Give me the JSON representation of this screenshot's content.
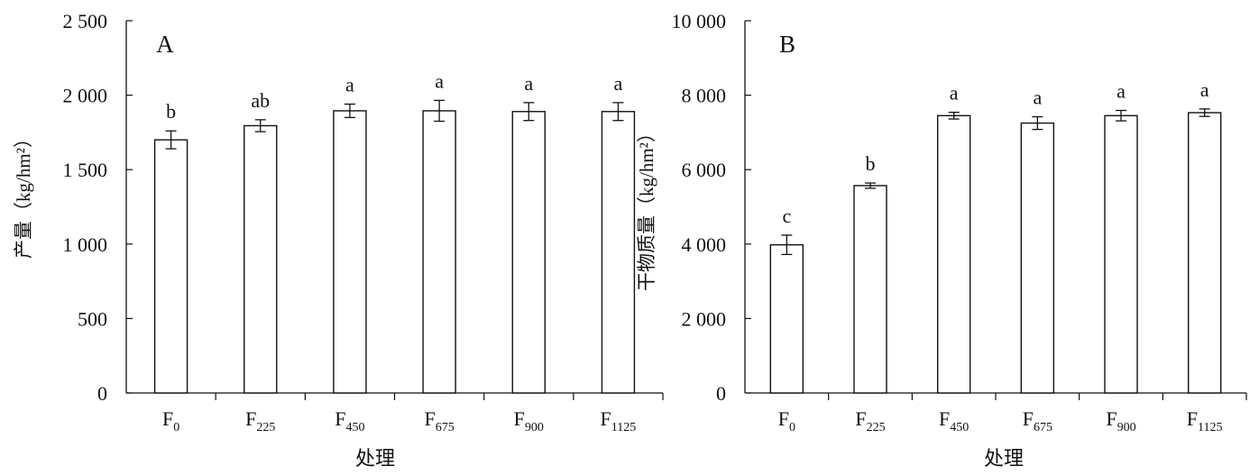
{
  "chart_data": [
    {
      "type": "bar",
      "panel_label": "A",
      "categories": [
        {
          "base": "F",
          "sub": "0"
        },
        {
          "base": "F",
          "sub": "225"
        },
        {
          "base": "F",
          "sub": "450"
        },
        {
          "base": "F",
          "sub": "675"
        },
        {
          "base": "F",
          "sub": "900"
        },
        {
          "base": "F",
          "sub": "1125"
        }
      ],
      "values": [
        1700,
        1795,
        1895,
        1895,
        1890,
        1890
      ],
      "errors": [
        60,
        40,
        45,
        70,
        60,
        60
      ],
      "significance": [
        "b",
        "ab",
        "a",
        "a",
        "a",
        "a"
      ],
      "xlabel": "处理",
      "ylabel": "产量（kg/hm²）",
      "ylim": [
        0,
        2500
      ],
      "yticks": [
        0,
        500,
        1000,
        1500,
        2000,
        2500
      ],
      "ytick_labels": [
        "0",
        "500",
        "1 000",
        "1 500",
        "2 000",
        "2 500"
      ],
      "grid": false,
      "bar_fill": "#ffffff",
      "bar_stroke": "#111111"
    },
    {
      "type": "bar",
      "panel_label": "B",
      "categories": [
        {
          "base": "F",
          "sub": "0"
        },
        {
          "base": "F",
          "sub": "225"
        },
        {
          "base": "F",
          "sub": "450"
        },
        {
          "base": "F",
          "sub": "675"
        },
        {
          "base": "F",
          "sub": "900"
        },
        {
          "base": "F",
          "sub": "1125"
        }
      ],
      "values": [
        3980,
        5570,
        7450,
        7250,
        7450,
        7530
      ],
      "errors": [
        260,
        70,
        90,
        170,
        140,
        100
      ],
      "significance": [
        "c",
        "b",
        "a",
        "a",
        "a",
        "a"
      ],
      "xlabel": "处理",
      "ylabel": "干物质量（kg/hm²）",
      "ylim": [
        0,
        10000
      ],
      "yticks": [
        0,
        2000,
        4000,
        6000,
        8000,
        10000
      ],
      "ytick_labels": [
        "0",
        "2 000",
        "4 000",
        "6 000",
        "8 000",
        "10 000"
      ],
      "grid": false,
      "bar_fill": "#ffffff",
      "bar_stroke": "#111111"
    }
  ]
}
